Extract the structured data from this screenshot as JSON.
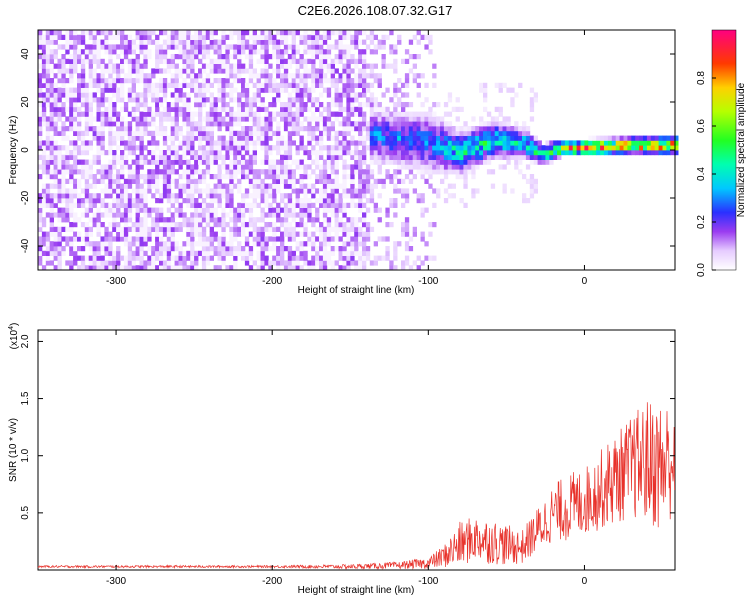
{
  "title": "C2E6.2026.108.07.32.G17",
  "colors": {
    "snr_line": "#e8312a",
    "spectrogram_noise": "#7a2be0",
    "spectrogram_signal": "#2ec8e8"
  },
  "chart_data": [
    {
      "type": "heatmap",
      "xlabel": "Height of straight line (km)",
      "ylabel": "Frequency (Hz)",
      "xlim": [
        -350,
        58
      ],
      "ylim": [
        -50,
        50
      ],
      "xticks": [
        -300,
        -200,
        -100,
        0
      ],
      "yticks": [
        -40,
        -20,
        0,
        20,
        40
      ],
      "colorbar": {
        "label": "Normalized spectral amplitude",
        "range": [
          0,
          1
        ],
        "ticks": [
          "0.0",
          "0.2",
          "0.4",
          "0.6",
          "0.8"
        ],
        "colormap": "white-purple-blue-cyan-green-yellow-red-magenta"
      },
      "signal_track": [
        {
          "x": -135,
          "y": 5,
          "spread": 10,
          "amp": 0.3
        },
        {
          "x": -100,
          "y": 2,
          "spread": 12,
          "amp": 0.3
        },
        {
          "x": -80,
          "y": -2,
          "spread": 8,
          "amp": 0.45
        },
        {
          "x": -60,
          "y": 3,
          "spread": 7,
          "amp": 0.45
        },
        {
          "x": -40,
          "y": 2,
          "spread": 5,
          "amp": 0.4
        },
        {
          "x": -28,
          "y": -3,
          "spread": 3,
          "amp": 0.55
        },
        {
          "x": -15,
          "y": 0,
          "spread": 2,
          "amp": 0.7
        },
        {
          "x": 0,
          "y": 0,
          "spread": 2,
          "amp": 0.85
        },
        {
          "x": 30,
          "y": 1,
          "spread": 2,
          "amp": 0.9
        },
        {
          "x": 58,
          "y": 1,
          "spread": 2,
          "amp": 0.9
        }
      ]
    },
    {
      "type": "line",
      "xlabel": "Height of straight line (km)",
      "ylabel": "SNR (10 * v/v)",
      "multiplier": "(x10",
      "multiplier_exp": "4",
      "multiplier_close": ")",
      "xlim": [
        -350,
        58
      ],
      "ylim": [
        0,
        2.1
      ],
      "xticks": [
        -300,
        -200,
        -100,
        0
      ],
      "yticks": [
        "0.5",
        "1.0",
        "1.5",
        "2.0"
      ],
      "series": [
        {
          "x": [
            -350,
            -300,
            -250,
            -200,
            -150,
            -120,
            -100,
            -90,
            -80,
            -70,
            -60,
            -50,
            -40,
            -30,
            -20,
            -10,
            0,
            10,
            20,
            30,
            40,
            50,
            58
          ],
          "y": [
            0.03,
            0.03,
            0.03,
            0.03,
            0.03,
            0.04,
            0.06,
            0.12,
            0.22,
            0.28,
            0.25,
            0.22,
            0.2,
            0.35,
            0.5,
            0.55,
            0.6,
            0.7,
            0.8,
            0.9,
            0.95,
            0.9,
            1.0
          ],
          "noise": [
            0.01,
            0.01,
            0.01,
            0.01,
            0.02,
            0.03,
            0.05,
            0.1,
            0.2,
            0.2,
            0.2,
            0.18,
            0.15,
            0.2,
            0.25,
            0.3,
            0.3,
            0.35,
            0.4,
            0.45,
            0.55,
            0.6,
            0.5
          ]
        }
      ]
    }
  ]
}
